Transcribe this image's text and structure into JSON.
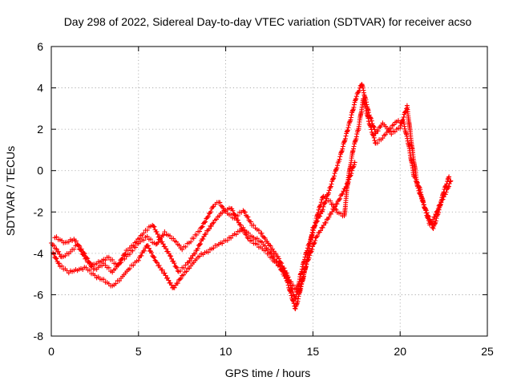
{
  "chart_data": {
    "type": "scatter",
    "title": "Day 298 of 2022, Sidereal Day-to-day VTEC variation (SDTVAR) for receiver acso",
    "xlabel": "GPS time / hours",
    "ylabel": "SDTVAR / TECUs",
    "xlim": [
      0,
      25
    ],
    "ylim": [
      -8,
      6
    ],
    "xticks": [
      "0",
      "5",
      "10",
      "15",
      "20",
      "25"
    ],
    "yticks": [
      "-8",
      "-6",
      "-4",
      "-2",
      "0",
      "2",
      "4",
      "6"
    ],
    "grid": true,
    "marker": "plus",
    "color": "#ff0000",
    "series": [
      {
        "x": [
          0.0,
          0.3,
          0.6,
          1.0,
          1.5,
          2.0,
          2.5,
          3.0,
          3.5,
          4.0,
          4.5,
          5.0,
          5.5,
          6.0,
          6.5,
          7.0,
          7.5,
          8.0,
          8.5,
          9.0,
          9.3,
          9.6,
          10.0,
          10.5,
          11.0,
          11.5,
          12.0,
          12.5,
          13.0,
          13.5,
          13.8,
          14.0,
          14.3,
          14.6,
          15.0,
          15.3,
          15.6,
          16.0,
          16.4,
          16.8,
          17.0,
          17.3,
          17.6,
          17.9,
          18.2,
          18.6,
          19.0,
          19.4,
          19.8,
          20.2,
          20.5,
          20.8,
          21.1,
          21.4,
          21.7,
          22.0,
          22.3,
          22.6,
          22.9
        ],
        "y": [
          -3.5,
          -3.8,
          -4.2,
          -4.0,
          -3.6,
          -4.3,
          -4.8,
          -4.5,
          -4.9,
          -4.4,
          -4.0,
          -3.5,
          -3.2,
          -3.6,
          -3.0,
          -3.3,
          -3.8,
          -3.4,
          -2.9,
          -2.2,
          -1.7,
          -1.5,
          -2.0,
          -2.3,
          -1.9,
          -2.6,
          -3.0,
          -3.6,
          -4.2,
          -5.0,
          -5.8,
          -6.2,
          -5.0,
          -4.0,
          -3.0,
          -2.0,
          -1.2,
          -1.5,
          -2.0,
          -2.2,
          -0.5,
          1.0,
          2.0,
          3.5,
          2.4,
          1.3,
          1.6,
          2.0,
          2.4,
          2.3,
          1.2,
          -0.3,
          -0.8,
          -1.8,
          -2.6,
          -2.2,
          -1.6,
          -1.1,
          -0.5
        ]
      },
      {
        "x": [
          0.1,
          0.5,
          1.0,
          1.5,
          2.0,
          2.5,
          3.0,
          3.5,
          4.0,
          4.5,
          5.0,
          5.5,
          6.0,
          6.5,
          7.0,
          7.5,
          8.0,
          8.5,
          9.0,
          9.5,
          10.0,
          10.5,
          11.0,
          11.5,
          12.0,
          12.5,
          13.0,
          13.5,
          14.0,
          14.5,
          15.0,
          15.5,
          16.0,
          16.5,
          17.0,
          17.5,
          17.8,
          18.2,
          18.6,
          19.0,
          19.5,
          20.0,
          20.4,
          20.7,
          21.0,
          21.3,
          21.6,
          21.9,
          22.2,
          22.5,
          22.8
        ],
        "y": [
          -4.0,
          -4.6,
          -4.9,
          -4.8,
          -4.7,
          -5.1,
          -5.3,
          -5.6,
          -5.2,
          -4.7,
          -4.3,
          -3.6,
          -4.4,
          -5.0,
          -5.7,
          -5.1,
          -4.6,
          -4.1,
          -3.9,
          -3.6,
          -3.4,
          -3.1,
          -2.8,
          -3.2,
          -3.4,
          -3.9,
          -4.5,
          -5.3,
          -6.7,
          -5.0,
          -2.8,
          -2.0,
          -0.8,
          0.5,
          2.0,
          3.6,
          4.2,
          2.8,
          1.8,
          2.3,
          1.8,
          2.1,
          3.1,
          1.0,
          -0.8,
          -1.5,
          -2.2,
          -2.8,
          -2.0,
          -1.0,
          -0.3
        ]
      },
      {
        "x": [
          0.2,
          0.8,
          1.3,
          1.8,
          2.3,
          2.8,
          3.3,
          3.8,
          4.3,
          4.8,
          5.3,
          5.8,
          6.3,
          6.8,
          7.3,
          7.8,
          8.3,
          8.8,
          9.3,
          9.8,
          10.3,
          10.8,
          11.3,
          11.8,
          12.3,
          12.8,
          13.3,
          13.8,
          14.2,
          14.6,
          15.2,
          15.8,
          16.5,
          17.0,
          17.4
        ],
        "y": [
          -3.2,
          -3.5,
          -3.3,
          -3.9,
          -4.6,
          -4.4,
          -4.2,
          -4.6,
          -3.9,
          -3.5,
          -3.0,
          -2.6,
          -3.4,
          -4.1,
          -4.9,
          -4.5,
          -3.9,
          -3.1,
          -2.5,
          -2.0,
          -1.8,
          -2.6,
          -3.3,
          -3.6,
          -3.9,
          -4.4,
          -4.8,
          -5.5,
          -5.9,
          -4.6,
          -3.2,
          -2.4,
          -1.4,
          -0.6,
          0.4
        ]
      }
    ]
  }
}
